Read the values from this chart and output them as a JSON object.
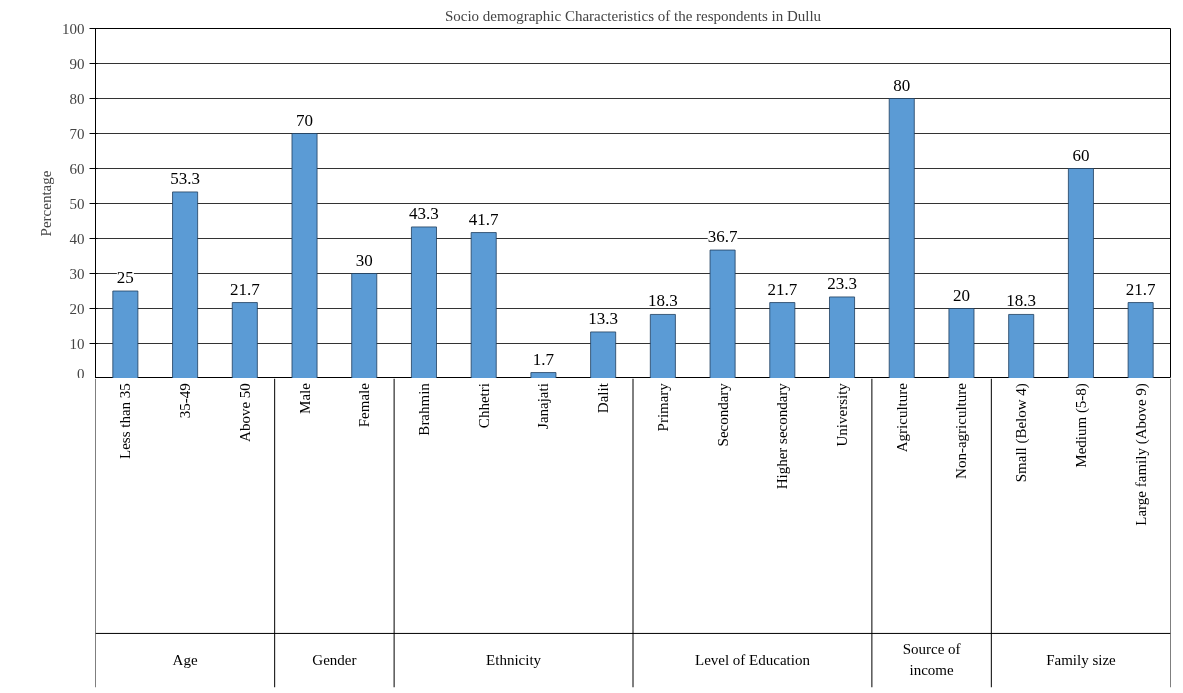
{
  "chart_data": {
    "type": "bar",
    "title": "Socio demographic Characteristics of the respondents in Dullu",
    "ylabel": "Percentage",
    "categories": [
      "Less than 35",
      "35-49",
      "Above 50",
      "Male",
      "Female",
      "Brahmin",
      "Chhetri",
      "Janajati",
      "Dalit",
      "Primary",
      "Secondary",
      "Higher secondary",
      "University",
      "Agriculture",
      "Non-agriculture",
      "Small (Below 4)",
      "Medium (5-8)",
      "Large family (Above 9)"
    ],
    "annotations": [
      "Age",
      "Gender",
      "Ethnicity",
      "Level of Education",
      "Source of\nincome",
      "Family size"
    ],
    "series": [
      {
        "color": "#5b9bd5",
        "values": [
          25,
          53.3,
          21.7,
          null,
          null,
          null,
          null,
          null,
          null,
          null,
          null,
          null,
          null,
          null,
          null,
          null,
          null,
          null
        ]
      },
      {
        "color": "#5b9bd5",
        "values": [
          null,
          null,
          null,
          70,
          30,
          null,
          null,
          null,
          null,
          null,
          null,
          null,
          null,
          null,
          null,
          null,
          null,
          null
        ]
      },
      {
        "color": "#5b9bd5",
        "values": [
          null,
          null,
          null,
          null,
          null,
          43.3,
          41.7,
          1.7,
          13.3,
          null,
          null,
          null,
          null,
          null,
          null,
          null,
          null,
          null
        ]
      },
      {
        "color": "#5b9bd5",
        "values": [
          null,
          null,
          null,
          null,
          null,
          null,
          null,
          null,
          null,
          18.3,
          36.7,
          21.7,
          23.3,
          null,
          null,
          null,
          null,
          null
        ]
      },
      {
        "color": "#5b9bd5",
        "values": [
          null,
          null,
          null,
          null,
          null,
          null,
          null,
          null,
          null,
          null,
          null,
          null,
          null,
          80,
          20,
          null,
          null,
          null
        ]
      },
      {
        "color": "#5b9bd5",
        "values": [
          null,
          null,
          null,
          null,
          null,
          null,
          null,
          null,
          null,
          null,
          null,
          null,
          null,
          null,
          null,
          18.3,
          60,
          21.7
        ]
      }
    ],
    "data_labels": true,
    "ylim": [
      0,
      100
    ],
    "yticks": [
      0,
      10,
      20,
      30,
      40,
      50,
      60,
      70,
      80,
      90,
      100
    ],
    "grid": "y"
  }
}
